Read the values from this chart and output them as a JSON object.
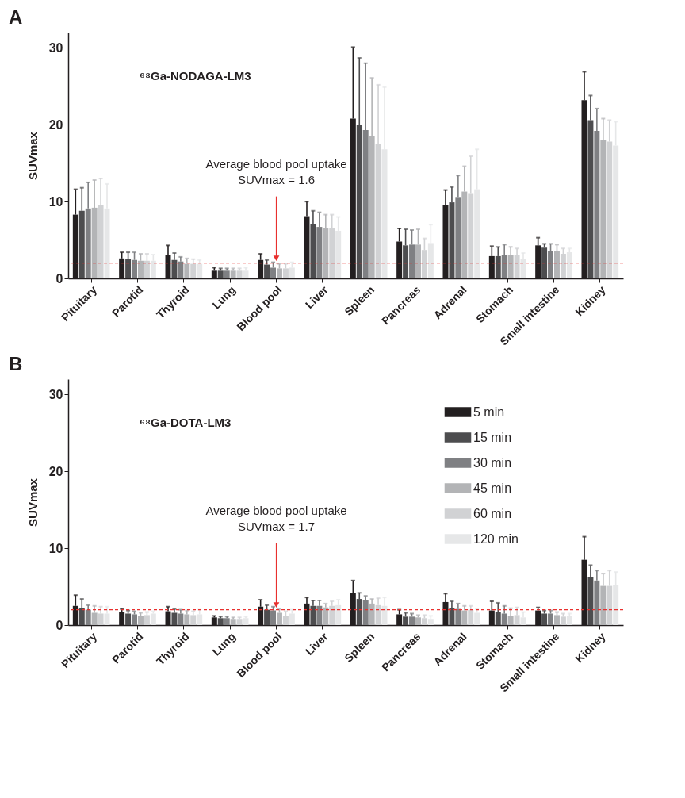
{
  "chart_data": [
    {
      "type": "bar",
      "title": "A",
      "ylabel": "SUVmax",
      "legend": false,
      "grid": false,
      "categories": [
        "Pituitary",
        "Parotid",
        "Thyroid",
        "Lung",
        "Blood pool",
        "Liver",
        "Spleen",
        "Pancreas",
        "Adrenal",
        "Stomach",
        "Small intestine",
        "Kidney"
      ],
      "ylim": [
        0,
        32
      ],
      "yticks": [
        0,
        10,
        20,
        30
      ],
      "series": [
        {
          "color": "#231f20",
          "values": [
            8.3,
            2.6,
            3.1,
            1.0,
            2.4,
            8.1,
            20.8,
            4.8,
            9.5,
            2.9,
            4.3,
            23.2
          ],
          "errors": [
            [
              8.3,
              11.6
            ],
            [
              2.6,
              3.4
            ],
            [
              3.1,
              4.3
            ],
            [
              1.0,
              1.4
            ],
            [
              2.4,
              3.2
            ],
            [
              8.1,
              10.0
            ],
            [
              20.8,
              30.1
            ],
            [
              4.8,
              6.5
            ],
            [
              9.5,
              11.5
            ],
            [
              2.9,
              4.2
            ],
            [
              4.3,
              5.3
            ],
            [
              23.2,
              26.9
            ]
          ]
        },
        {
          "color": "#4d4d4f",
          "values": [
            8.8,
            2.5,
            2.4,
            1.0,
            1.8,
            7.1,
            20.0,
            4.3,
            9.9,
            2.9,
            4.0,
            20.6
          ],
          "errors": [
            [
              8.8,
              11.8
            ],
            [
              2.5,
              3.4
            ],
            [
              2.4,
              3.3
            ],
            [
              1.0,
              1.3
            ],
            [
              1.8,
              2.4
            ],
            [
              7.1,
              8.8
            ],
            [
              20.0,
              28.7
            ],
            [
              4.3,
              6.4
            ],
            [
              9.9,
              11.9
            ],
            [
              2.9,
              4.1
            ],
            [
              4.0,
              4.5
            ],
            [
              20.6,
              23.8
            ]
          ]
        },
        {
          "color": "#7f8083",
          "values": [
            9.1,
            2.4,
            2.2,
            1.0,
            1.4,
            6.7,
            19.3,
            4.4,
            10.6,
            3.1,
            3.6,
            19.2
          ],
          "errors": [
            [
              9.1,
              12.5
            ],
            [
              2.4,
              3.4
            ],
            [
              2.2,
              2.8
            ],
            [
              1.0,
              1.3
            ],
            [
              1.4,
              2.1
            ],
            [
              6.7,
              8.6
            ],
            [
              19.3,
              28.0
            ],
            [
              4.4,
              6.3
            ],
            [
              10.6,
              13.4
            ],
            [
              3.1,
              4.4
            ],
            [
              3.6,
              4.5
            ],
            [
              19.2,
              22.1
            ]
          ]
        },
        {
          "color": "#b3b4b6",
          "values": [
            9.2,
            2.3,
            1.9,
            1.0,
            1.3,
            6.5,
            18.5,
            4.4,
            11.3,
            3.1,
            3.6,
            18.0
          ],
          "errors": [
            [
              9.2,
              12.8
            ],
            [
              2.3,
              3.2
            ],
            [
              1.9,
              2.6
            ],
            [
              1.0,
              1.3
            ],
            [
              1.3,
              1.9
            ],
            [
              6.5,
              8.3
            ],
            [
              18.5,
              26.1
            ],
            [
              4.4,
              6.4
            ],
            [
              11.3,
              14.6
            ],
            [
              3.1,
              4.1
            ],
            [
              3.6,
              4.4
            ],
            [
              18.0,
              20.8
            ]
          ]
        },
        {
          "color": "#d1d2d4",
          "values": [
            9.5,
            2.3,
            1.9,
            1.0,
            1.3,
            6.5,
            17.5,
            3.7,
            11.1,
            3.0,
            3.2,
            17.8
          ],
          "errors": [
            [
              9.5,
              13.0
            ],
            [
              2.3,
              3.2
            ],
            [
              1.9,
              2.5
            ],
            [
              1.0,
              1.3
            ],
            [
              1.3,
              1.9
            ],
            [
              6.5,
              8.3
            ],
            [
              17.5,
              25.2
            ],
            [
              3.7,
              5.2
            ],
            [
              11.1,
              15.9
            ],
            [
              3.0,
              3.9
            ],
            [
              3.2,
              3.9
            ],
            [
              17.8,
              20.6
            ]
          ]
        },
        {
          "color": "#e6e7e8",
          "values": [
            9.1,
            2.3,
            1.9,
            1.0,
            1.4,
            6.2,
            16.8,
            4.6,
            11.6,
            2.5,
            3.4,
            17.3
          ],
          "errors": [
            [
              9.1,
              12.3
            ],
            [
              2.3,
              3.1
            ],
            [
              1.9,
              2.4
            ],
            [
              1.0,
              1.4
            ],
            [
              1.4,
              2.1
            ],
            [
              6.2,
              8.0
            ],
            [
              16.8,
              24.9
            ],
            [
              4.6,
              7.0
            ],
            [
              11.6,
              16.8
            ],
            [
              2.5,
              3.3
            ],
            [
              3.4,
              3.9
            ],
            [
              17.3,
              20.4
            ]
          ]
        }
      ],
      "ref_lines": [
        {
          "axis": "y",
          "value": 2,
          "label": null,
          "color": "#e8302e",
          "line_style": "dashed"
        }
      ],
      "annotations": [
        "⁶⁸Ga-NODAGA-LM3",
        {
          "text": "Average blood pool uptake\nSUVmax = 1.6",
          "x": "Blood pool",
          "y": 2
        }
      ]
    },
    {
      "type": "bar",
      "title": "B",
      "ylabel": "SUVmax",
      "legend": "top right",
      "grid": false,
      "categories": [
        "Pituitary",
        "Parotid",
        "Thyroid",
        "Lung",
        "Blood pool",
        "Liver",
        "Spleen",
        "Pancreas",
        "Adrenal",
        "Stomach",
        "Small intestine",
        "Kidney"
      ],
      "ylim": [
        0,
        32
      ],
      "yticks": [
        0,
        10,
        20,
        30
      ],
      "series": [
        {
          "name": "5 min",
          "color": "#231f20",
          "values": [
            2.5,
            1.7,
            1.8,
            1.0,
            2.4,
            2.8,
            4.2,
            1.4,
            3.0,
            1.9,
            1.9,
            8.5
          ],
          "errors": [
            [
              2.5,
              3.9
            ],
            [
              1.7,
              2.1
            ],
            [
              1.8,
              2.4
            ],
            [
              1.0,
              1.2
            ],
            [
              2.4,
              3.3
            ],
            [
              2.8,
              3.6
            ],
            [
              4.2,
              5.8
            ],
            [
              1.4,
              2.0
            ],
            [
              3.0,
              4.1
            ],
            [
              1.9,
              3.1
            ],
            [
              1.9,
              2.3
            ],
            [
              8.5,
              11.5
            ]
          ]
        },
        {
          "name": "15 min",
          "color": "#4d4d4f",
          "values": [
            2.2,
            1.5,
            1.6,
            0.9,
            2.0,
            2.5,
            3.4,
            1.1,
            2.2,
            1.7,
            1.5,
            6.3
          ],
          "errors": [
            [
              2.2,
              3.4
            ],
            [
              1.5,
              1.9
            ],
            [
              1.6,
              2.1
            ],
            [
              0.9,
              1.1
            ],
            [
              2.0,
              2.6
            ],
            [
              2.5,
              3.2
            ],
            [
              3.4,
              4.2
            ],
            [
              1.1,
              1.6
            ],
            [
              2.2,
              3.1
            ],
            [
              1.7,
              2.9
            ],
            [
              1.5,
              1.9
            ],
            [
              6.3,
              7.8
            ]
          ]
        },
        {
          "name": "30 min",
          "color": "#7f8083",
          "values": [
            2.0,
            1.4,
            1.5,
            0.9,
            1.9,
            2.5,
            3.2,
            1.1,
            2.1,
            1.5,
            1.5,
            5.8
          ],
          "errors": [
            [
              2.0,
              2.6
            ],
            [
              1.4,
              1.8
            ],
            [
              1.5,
              2.0
            ],
            [
              0.9,
              1.1
            ],
            [
              1.9,
              2.4
            ],
            [
              2.5,
              3.2
            ],
            [
              3.2,
              3.8
            ],
            [
              1.1,
              1.5
            ],
            [
              2.1,
              2.8
            ],
            [
              1.5,
              2.5
            ],
            [
              1.5,
              1.9
            ],
            [
              5.8,
              7.1
            ]
          ]
        },
        {
          "name": "45 min",
          "color": "#b3b4b6",
          "values": [
            1.6,
            1.2,
            1.4,
            0.8,
            1.6,
            2.3,
            2.8,
            1.0,
            1.9,
            1.2,
            1.3,
            5.1
          ],
          "errors": [
            [
              1.6,
              2.5
            ],
            [
              1.2,
              1.6
            ],
            [
              1.4,
              1.9
            ],
            [
              0.8,
              1.0
            ],
            [
              1.6,
              2.1
            ],
            [
              2.3,
              2.8
            ],
            [
              2.8,
              3.4
            ],
            [
              1.0,
              1.3
            ],
            [
              1.9,
              2.5
            ],
            [
              1.2,
              2.2
            ],
            [
              1.3,
              1.7
            ],
            [
              5.1,
              6.7
            ]
          ]
        },
        {
          "name": "60 min",
          "color": "#d1d2d4",
          "values": [
            1.5,
            1.3,
            1.3,
            0.8,
            1.2,
            2.5,
            2.6,
            0.9,
            2.0,
            1.3,
            1.1,
            5.1
          ],
          "errors": [
            [
              1.5,
              2.4
            ],
            [
              1.3,
              1.7
            ],
            [
              1.3,
              1.8
            ],
            [
              0.8,
              1.0
            ],
            [
              1.2,
              1.8
            ],
            [
              2.5,
              3.1
            ],
            [
              2.6,
              3.5
            ],
            [
              0.9,
              1.3
            ],
            [
              2.0,
              2.5
            ],
            [
              1.3,
              2.3
            ],
            [
              1.1,
              1.5
            ],
            [
              5.1,
              7.1
            ]
          ]
        },
        {
          "name": "120 min",
          "color": "#e6e7e8",
          "values": [
            1.5,
            1.5,
            1.4,
            0.9,
            1.5,
            2.6,
            2.5,
            0.8,
            1.6,
            1.0,
            1.2,
            5.2
          ],
          "errors": [
            [
              1.5,
              2.4
            ],
            [
              1.5,
              1.8
            ],
            [
              1.4,
              2.0
            ],
            [
              0.9,
              1.1
            ],
            [
              1.5,
              2.0
            ],
            [
              2.6,
              3.3
            ],
            [
              2.5,
              3.6
            ],
            [
              0.8,
              1.2
            ],
            [
              1.6,
              2.1
            ],
            [
              1.0,
              1.7
            ],
            [
              1.2,
              1.5
            ],
            [
              5.2,
              6.9
            ]
          ]
        }
      ],
      "ref_lines": [
        {
          "axis": "y",
          "value": 2,
          "label": null,
          "color": "#e8302e",
          "line_style": "dashed"
        }
      ],
      "annotations": [
        "⁶⁸Ga-DOTA-LM3",
        {
          "text": "Average blood pool uptake\nSUVmax = 1.7",
          "x": "Blood pool",
          "y": 2
        }
      ]
    }
  ]
}
